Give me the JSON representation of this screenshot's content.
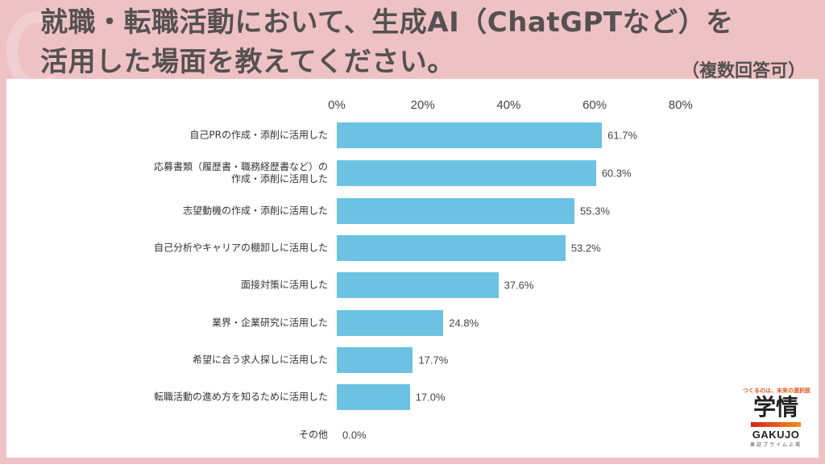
{
  "header": {
    "title": "就職・転職活動において、生成AI（ChatGPTなど）を活用した場面を教えてください。",
    "title_line1": "就職・転職活動において、生成AI（ChatGPTなど）を",
    "title_line2": "活用した場面を教えてください。",
    "note": "（複数回答可）"
  },
  "colors": {
    "background": "#eec2c5",
    "bar": "#6bc2e2",
    "title_text": "#555150"
  },
  "axis": {
    "ticks": [
      "0%",
      "20%",
      "40%",
      "60%",
      "80%"
    ]
  },
  "rows": [
    {
      "label": "自己PRの作成・添削に活用した",
      "value": 61.7,
      "value_label": "61.7%"
    },
    {
      "label": "応募書類（履歴書・職務経歴書など）の\n作成・添削に活用した",
      "value": 60.3,
      "value_label": "60.3%"
    },
    {
      "label": "志望動機の作成・添削に活用した",
      "value": 55.3,
      "value_label": "55.3%"
    },
    {
      "label": "自己分析やキャリアの棚卸しに活用した",
      "value": 53.2,
      "value_label": "53.2%"
    },
    {
      "label": "面接対策に活用した",
      "value": 37.6,
      "value_label": "37.6%"
    },
    {
      "label": "業界・企業研究に活用した",
      "value": 24.8,
      "value_label": "24.8%"
    },
    {
      "label": "希望に合う求人探しに活用した",
      "value": 17.7,
      "value_label": "17.7%"
    },
    {
      "label": "転職活動の進め方を知るために活用した",
      "value": 17.0,
      "value_label": "17.0%"
    },
    {
      "label": "その他",
      "value": 0.0,
      "value_label": "0.0%"
    }
  ],
  "logo": {
    "tagline": "つくるのは、未来の選択肢",
    "kanji": "学情",
    "english": "GAKUJO",
    "footer": "東証プライム上場"
  },
  "chart_data": {
    "type": "bar",
    "orientation": "horizontal",
    "title": "就職・転職活動において、生成AI（ChatGPTなど）を活用した場面を教えてください。（複数回答可）",
    "categories": [
      "自己PRの作成・添削に活用した",
      "応募書類（履歴書・職務経歴書など）の作成・添削に活用した",
      "志望動機の作成・添削に活用した",
      "自己分析やキャリアの棚卸しに活用した",
      "面接対策に活用した",
      "業界・企業研究に活用した",
      "希望に合う求人探しに活用した",
      "転職活動の進め方を知るために活用した",
      "その他"
    ],
    "values": [
      61.7,
      60.3,
      55.3,
      53.2,
      37.6,
      24.8,
      17.7,
      17.0,
      0.0
    ],
    "xlabel": "",
    "ylabel": "",
    "xlim": [
      0,
      80
    ],
    "tick_labels": [
      "0%",
      "20%",
      "40%",
      "60%",
      "80%"
    ],
    "grid": false,
    "legend": null,
    "data_labels": true
  }
}
